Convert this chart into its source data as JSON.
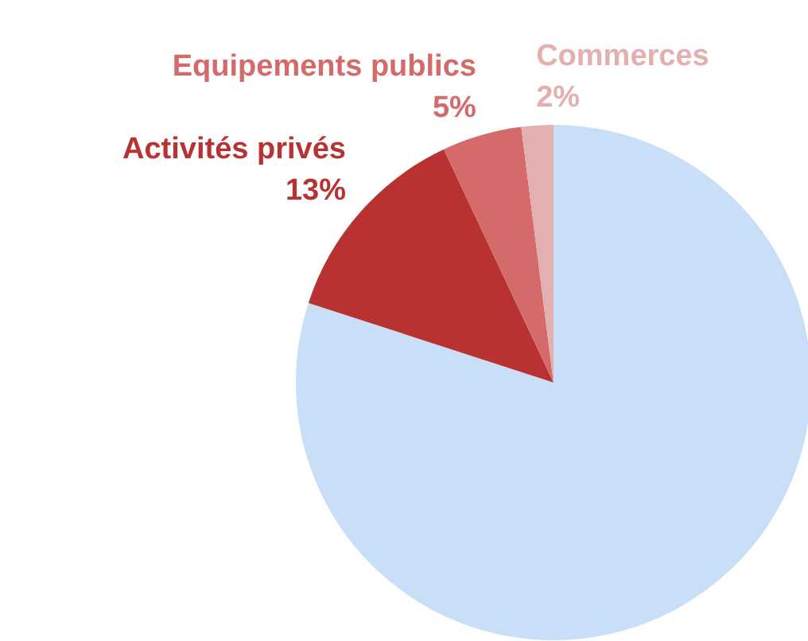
{
  "chart_data": {
    "type": "pie",
    "categories": [
      null,
      "Activités privés",
      "Equipements publics",
      "Commerces"
    ],
    "values": [
      80,
      13,
      5,
      2
    ],
    "colors": [
      "#c9def7",
      "#b83232",
      "#d46a6a",
      "#e3b0b0"
    ],
    "value_labels": [
      null,
      "13%",
      "5%",
      "2%"
    ],
    "legend": false
  }
}
